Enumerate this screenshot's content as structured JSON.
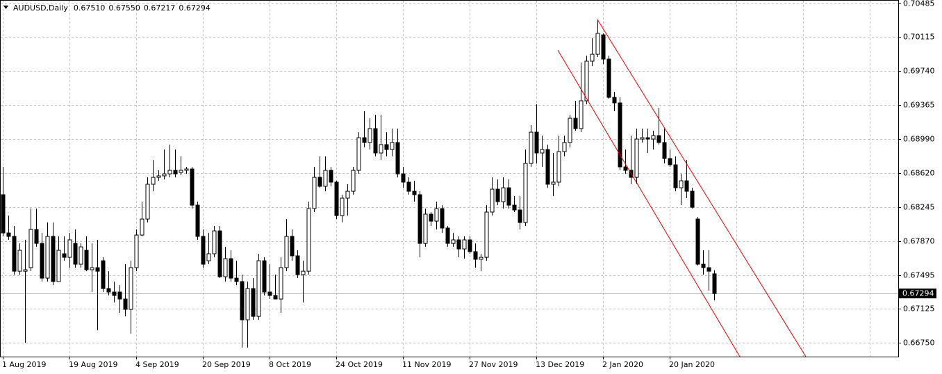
{
  "chart_data": {
    "type": "candlestick",
    "symbol": "AUDUSD,Daily",
    "ohlc_labels": [
      "0.67510",
      "0.67550",
      "0.67217",
      "0.67294"
    ],
    "last_price": {
      "value": 0.67294,
      "label": "0.67294"
    },
    "up_color": "#ffffff",
    "down_color": "#000000",
    "grid": true,
    "categories": [
      "1 Aug 2019",
      null,
      null,
      null,
      null,
      null,
      null,
      null,
      null,
      null,
      null,
      null,
      "19 Aug 2019",
      null,
      null,
      null,
      null,
      null,
      null,
      null,
      null,
      null,
      null,
      null,
      "4 Sep 2019",
      null,
      null,
      null,
      null,
      null,
      null,
      null,
      null,
      null,
      null,
      null,
      "20 Sep 2019",
      null,
      null,
      null,
      null,
      null,
      null,
      null,
      null,
      null,
      null,
      null,
      "8 Oct 2019",
      null,
      null,
      null,
      null,
      null,
      null,
      null,
      null,
      null,
      null,
      null,
      "24 Oct 2019",
      null,
      null,
      null,
      null,
      null,
      null,
      null,
      null,
      null,
      null,
      null,
      "11 Nov 2019",
      null,
      null,
      null,
      null,
      null,
      null,
      null,
      null,
      null,
      null,
      null,
      "27 Nov 2019",
      null,
      null,
      null,
      null,
      null,
      null,
      null,
      null,
      null,
      null,
      null,
      "13 Dec 2019",
      null,
      null,
      null,
      null,
      null,
      null,
      null,
      null,
      null,
      null,
      null,
      "2 Jan 2020",
      null,
      null,
      null,
      null,
      null,
      null,
      null,
      null,
      null,
      null,
      null,
      "20 Jan 2020",
      null,
      null,
      null,
      null,
      null,
      null,
      null,
      null
    ],
    "open": [
      0.68381,
      0.6796,
      0.67922,
      0.67539,
      0.67539,
      0.67578,
      0.67998,
      0.67845,
      0.67463,
      0.67922,
      0.67425,
      0.67731,
      0.67692,
      0.67845,
      0.67616,
      0.67769,
      0.67555,
      0.67578,
      0.67654,
      0.67348,
      0.6731,
      0.6731,
      0.67233,
      0.67119,
      0.67578,
      0.67937,
      0.68113,
      0.68496,
      0.68572,
      0.68588,
      0.6861,
      0.68649,
      0.68626,
      0.68649,
      0.68664,
      0.68266,
      0.67922,
      0.67654,
      0.67731,
      0.67983,
      0.67478,
      0.67677,
      0.67463,
      0.67425,
      0.67004,
      0.67348,
      0.67042,
      0.67654,
      0.6731,
      0.67272,
      0.67233,
      0.67578,
      0.67922,
      0.67708,
      0.67501,
      0.67539,
      0.68228,
      0.68572,
      0.68473,
      0.68649,
      0.68519,
      0.68151,
      0.68343,
      0.68419,
      0.68649,
      0.69008,
      0.68955,
      0.69108,
      0.6884,
      0.68932,
      0.68878,
      0.68955,
      0.6861,
      0.68519,
      0.68419,
      0.68381,
      0.67845,
      0.68167,
      0.6809,
      0.68228,
      0.68014,
      0.67845,
      0.67884,
      0.67784,
      0.67884,
      0.67754,
      0.6767,
      0.67692,
      0.6819,
      0.68442,
      0.68304,
      0.68457,
      0.68266,
      0.68213,
      0.68075,
      0.68725,
      0.69069,
      0.6884,
      0.68878,
      0.68496,
      0.68519,
      0.68855,
      0.68955,
      0.69222,
      0.69108,
      0.69414,
      0.6985,
      0.69926,
      0.7014,
      0.69873,
      0.69452,
      0.69391,
      0.68687,
      0.68649,
      0.68572,
      0.68993,
      0.69008,
      0.68993,
      0.69031,
      0.68955,
      0.68779,
      0.6871,
      0.68457,
      0.68534,
      0.68419,
      0.68113,
      0.67616,
      0.67578,
      0.6751
    ],
    "high": [
      0.68687,
      0.68151,
      0.68037,
      0.67845,
      0.67884,
      0.68228,
      0.68228,
      0.6796,
      0.68075,
      0.68075,
      0.67922,
      0.67922,
      0.6796,
      0.67998,
      0.67845,
      0.67922,
      0.67845,
      0.67884,
      0.67692,
      0.67539,
      0.67425,
      0.67386,
      0.67616,
      0.67654,
      0.67998,
      0.68304,
      0.68572,
      0.68763,
      0.68649,
      0.68878,
      0.68932,
      0.68878,
      0.68802,
      0.68687,
      0.68687,
      0.68304,
      0.67998,
      0.6796,
      0.68037,
      0.68037,
      0.67807,
      0.67769,
      0.67654,
      0.67501,
      0.67425,
      0.67463,
      0.67731,
      0.67692,
      0.67616,
      0.67501,
      0.67692,
      0.68113,
      0.67998,
      0.67769,
      0.67654,
      0.68304,
      0.68687,
      0.68802,
      0.68802,
      0.68687,
      0.68534,
      0.68381,
      0.68496,
      0.68687,
      0.69069,
      0.69299,
      0.69222,
      0.69261,
      0.69261,
      0.69069,
      0.69108,
      0.69108,
      0.68687,
      0.68572,
      0.68534,
      0.68419,
      0.68228,
      0.6819,
      0.68304,
      0.68266,
      0.68037,
      0.6796,
      0.67922,
      0.67922,
      0.67922,
      0.67845,
      0.67731,
      0.68266,
      0.68572,
      0.68549,
      0.68572,
      0.68549,
      0.68366,
      0.68366,
      0.68878,
      0.69146,
      0.69375,
      0.69031,
      0.68932,
      0.6884,
      0.69031,
      0.69031,
      0.69261,
      0.69414,
      0.69834,
      0.69911,
      0.70102,
      0.70309,
      0.70156,
      0.69911,
      0.69513,
      0.69452,
      0.68878,
      0.69031,
      0.69108,
      0.69108,
      0.69108,
      0.69085,
      0.69337,
      0.69108,
      0.68878,
      0.68802,
      0.6861,
      0.68763,
      0.68457,
      0.68136,
      0.67769,
      0.67769,
      0.6755
    ],
    "low": [
      0.67922,
      0.67884,
      0.67501,
      0.67501,
      0.66752,
      0.67539,
      0.67807,
      0.67425,
      0.67425,
      0.67386,
      0.67425,
      0.67654,
      0.67578,
      0.67578,
      0.67578,
      0.67539,
      0.6731,
      0.66889,
      0.6731,
      0.67272,
      0.67195,
      0.6708,
      0.67042,
      0.66851,
      0.67539,
      0.67922,
      0.68075,
      0.68419,
      0.68534,
      0.68549,
      0.68572,
      0.68572,
      0.68595,
      0.6861,
      0.68228,
      0.67884,
      0.67578,
      0.67616,
      0.67692,
      0.67463,
      0.67425,
      0.67425,
      0.67386,
      0.66698,
      0.66698,
      0.67004,
      0.67004,
      0.67272,
      0.67233,
      0.67233,
      0.6708,
      0.67539,
      0.67654,
      0.67463,
      0.67195,
      0.67501,
      0.6819,
      0.68457,
      0.68419,
      0.68473,
      0.68113,
      0.68075,
      0.68151,
      0.68381,
      0.6861,
      0.68901,
      0.68878,
      0.68802,
      0.68763,
      0.68802,
      0.68802,
      0.68572,
      0.68457,
      0.68381,
      0.68304,
      0.67692,
      0.67807,
      0.68037,
      0.67998,
      0.6796,
      0.67807,
      0.67807,
      0.67692,
      0.67677,
      0.67731,
      0.67578,
      0.67539,
      0.67654,
      0.68151,
      0.68266,
      0.68228,
      0.68228,
      0.6819,
      0.67998,
      0.68037,
      0.68687,
      0.68725,
      0.68687,
      0.68457,
      0.68366,
      0.68473,
      0.68802,
      0.68901,
      0.69085,
      0.69069,
      0.69375,
      0.69796,
      0.69896,
      0.69819,
      0.69437,
      0.69299,
      0.68649,
      0.6861,
      0.68496,
      0.68496,
      0.68955,
      0.6884,
      0.68878,
      0.68932,
      0.68725,
      0.68687,
      0.68419,
      0.68266,
      0.68343,
      0.68228,
      0.67601,
      0.67501,
      0.67325,
      0.67217
    ],
    "close": [
      0.6796,
      0.67922,
      0.67539,
      0.67769,
      0.67555,
      0.67998,
      0.67845,
      0.67463,
      0.67922,
      0.67425,
      0.67769,
      0.67692,
      0.67884,
      0.67616,
      0.67807,
      0.67555,
      0.67578,
      0.67539,
      0.67348,
      0.6731,
      0.67272,
      0.67233,
      0.67119,
      0.67578,
      0.67937,
      0.68113,
      0.68496,
      0.68572,
      0.68588,
      0.6861,
      0.68649,
      0.6861,
      0.68649,
      0.68664,
      0.68266,
      0.67922,
      0.67616,
      0.67731,
      0.67983,
      0.67478,
      0.67677,
      0.67463,
      0.67425,
      0.67004,
      0.67348,
      0.67042,
      0.67654,
      0.6731,
      0.67272,
      0.67233,
      0.67578,
      0.67922,
      0.67708,
      0.67501,
      0.67539,
      0.68228,
      0.68572,
      0.68473,
      0.68649,
      0.68519,
      0.68151,
      0.68343,
      0.68419,
      0.68649,
      0.69008,
      0.68955,
      0.69108,
      0.6884,
      0.68932,
      0.68878,
      0.68955,
      0.6861,
      0.68519,
      0.68419,
      0.68381,
      0.67845,
      0.68167,
      0.6809,
      0.68228,
      0.68014,
      0.67845,
      0.67884,
      0.67784,
      0.67884,
      0.67754,
      0.6767,
      0.67692,
      0.6819,
      0.68442,
      0.68304,
      0.68457,
      0.68266,
      0.68213,
      0.68075,
      0.68725,
      0.69069,
      0.6884,
      0.68878,
      0.68496,
      0.68519,
      0.68855,
      0.68955,
      0.69222,
      0.69108,
      0.69414,
      0.6985,
      0.69926,
      0.70156,
      0.69873,
      0.69452,
      0.69391,
      0.68687,
      0.68649,
      0.68572,
      0.68993,
      0.69008,
      0.68993,
      0.69031,
      0.68955,
      0.68779,
      0.6871,
      0.68457,
      0.68534,
      0.68419,
      0.68243,
      0.67616,
      0.67578,
      0.67539,
      0.67294
    ],
    "trendlines": [
      {
        "color": "#e00000",
        "x": [
          99.875,
          132.625
        ],
        "y": [
          0.69972,
          0.66599
        ]
      },
      {
        "color": "#e00000",
        "x": [
          107,
          144.5
        ],
        "y": [
          0.70309,
          0.66599
        ]
      }
    ],
    "ylim": [
      0.66599,
      0.70508
    ],
    "yticks": [
      0.70485,
      0.70115,
      {
        "value": 0.6974,
        "label": "0.69740"
      },
      0.69365,
      {
        "value": 0.6899,
        "label": "0.68990"
      },
      {
        "value": 0.6862,
        "label": "0.68620"
      },
      0.68245,
      {
        "value": 0.6787,
        "label": "0.67870"
      },
      0.67495,
      0.67125,
      {
        "value": 0.6675,
        "label": "0.66750"
      }
    ]
  }
}
